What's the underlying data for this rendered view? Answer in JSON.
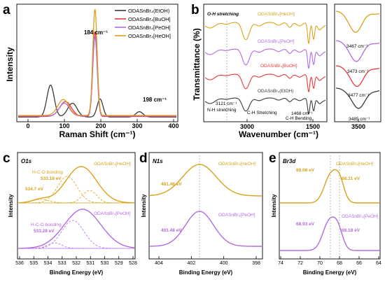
{
  "colors": {
    "etoh": "#3a3a3a",
    "buoh": "#e8393a",
    "peoh": "#b36ae2",
    "heoh": "#d9a21a",
    "guide": "#8a8a8a"
  },
  "panel_a": {
    "letter": "a",
    "xlabel": "Raman Shift (cm⁻¹)",
    "ylabel": "Intensity",
    "xticks": [
      "0",
      "100",
      "200",
      "300",
      "400"
    ],
    "peak_labels": [
      "184 cm⁻¹",
      "198 cm⁻¹"
    ],
    "legend": [
      "ODASnBr₄(EtOH)",
      "ODASnBr₄[BuOH]",
      "ODASnBr₄[PeOH]",
      "ODASnBr₄[HeOH]"
    ]
  },
  "panel_b": {
    "letter": "b",
    "xlabel": "Wavenumber (cm⁻¹)",
    "ylabel": "Transmittance (%)",
    "xticks": [
      "3000",
      "1500",
      "3500"
    ],
    "annotations": {
      "oh": "O-H stretching",
      "nh_num": "3121 cm⁻¹",
      "nh": "N-H stretching",
      "ch": "C-H Stretching",
      "chb_num": "1468 cm⁻¹",
      "chb": "C-H Bending"
    },
    "series_labels": [
      "ODASnBr₄[HeOH]",
      "ODASnBr₄[PeOH]",
      "ODASnBr₄[BuOH]",
      "ODASnBr₄(EtOH)"
    ],
    "inset_labels": [
      "3467 cm⁻¹",
      "3473 cm⁻¹",
      "3477 cm⁻¹",
      "3485 cm⁻¹"
    ]
  },
  "panel_c": {
    "letter": "c",
    "title": "O1s",
    "xlabel": "Binding Energy (eV)",
    "ylabel": "Intensity",
    "xticks": [
      "536",
      "535",
      "534",
      "533",
      "532",
      "531",
      "530",
      "529",
      "528"
    ],
    "top_name": "ODASnBr₄[HeOH]",
    "top_bond": "H-C-O bonding",
    "top_val": "533.18 eV",
    "top_left": "534.7 eV",
    "bot_name": "ODASnBr₄[PeOH]",
    "bot_bond": "H-C-O bonding",
    "bot_val": "533.28 eV"
  },
  "panel_d": {
    "letter": "d",
    "title": "N1s",
    "xlabel": "Binding Energy (eV)",
    "ylabel": "Intensity",
    "xticks": [
      "404",
      "402",
      "400",
      "398"
    ],
    "top_name": "ODASnBr₄[HeOH]",
    "top_val": "401.48 eV",
    "bot_name": "ODASnBr₄[PeOH]",
    "bot_val": "401.48 eV"
  },
  "panel_e": {
    "letter": "e",
    "title": "Br3d",
    "xlabel": "Binding Energy (eV)",
    "ylabel": "Intensity",
    "xticks": [
      "74",
      "72",
      "70",
      "68",
      "66",
      "64"
    ],
    "top_name": "ODASnBr₄[HeOH]",
    "top_v1": "69.08 eV",
    "top_v2": "68.31 eV",
    "bot_name": "ODASnBr₄[PeOH]",
    "bot_v1": "68.93 eV",
    "bot_v2": "68.18 eV"
  },
  "chart_data": [
    {
      "type": "line",
      "panel": "a",
      "xlabel": "Raman Shift (cm⁻¹)",
      "ylabel": "Intensity",
      "xlim": [
        0,
        400
      ],
      "series": [
        {
          "name": "ODASnBr₄(EtOH)",
          "peaks": [
            [
              62,
              0.3
            ],
            [
              122,
              0.13
            ],
            [
              198,
              0.17
            ],
            [
              306,
              0.05
            ]
          ]
        },
        {
          "name": "ODASnBr₄[BuOH]",
          "peaks": [
            [
              103,
              0.14
            ],
            [
              184,
              0.8
            ]
          ]
        },
        {
          "name": "ODASnBr₄[PeOH]",
          "peaks": [
            [
              100,
              0.12
            ],
            [
              184,
              0.75
            ]
          ]
        },
        {
          "name": "ODASnBr₄[HeOH]",
          "peaks": [
            [
              97,
              0.15
            ],
            [
              184,
              1.0
            ]
          ]
        }
      ]
    },
    {
      "type": "line",
      "panel": "b",
      "xlabel": "Wavenumber (cm⁻¹)",
      "ylabel": "Transmittance (%)",
      "series": [
        {
          "name": "ODASnBr₄[HeOH]",
          "minimum": 3467
        },
        {
          "name": "ODASnBr₄[PeOH]",
          "minimum": 3473
        },
        {
          "name": "ODASnBr₄[BuOH]",
          "minimum": 3477
        },
        {
          "name": "ODASnBr₄(EtOH)",
          "minimum": 3485
        }
      ]
    },
    {
      "type": "line",
      "panel": "c",
      "xlabel": "Binding Energy (eV)",
      "xlim": [
        536,
        528
      ],
      "series": [
        {
          "name": "ODASnBr₄[HeOH]",
          "peaks": [
            533.18,
            534.7
          ]
        },
        {
          "name": "ODASnBr₄[PeOH]",
          "peaks": [
            533.28
          ]
        }
      ]
    },
    {
      "type": "line",
      "panel": "d",
      "xlabel": "Binding Energy (eV)",
      "xlim": [
        405,
        398
      ],
      "series": [
        {
          "name": "ODASnBr₄[HeOH]",
          "peaks": [
            401.48
          ]
        },
        {
          "name": "ODASnBr₄[PeOH]",
          "peaks": [
            401.48
          ]
        }
      ]
    },
    {
      "type": "line",
      "panel": "e",
      "xlabel": "Binding Energy (eV)",
      "xlim": [
        74,
        64
      ],
      "series": [
        {
          "name": "ODASnBr₄[HeOH]",
          "peaks": [
            69.08,
            68.31
          ]
        },
        {
          "name": "ODASnBr₄[PeOH]",
          "peaks": [
            68.93,
            68.18
          ]
        }
      ]
    }
  ]
}
